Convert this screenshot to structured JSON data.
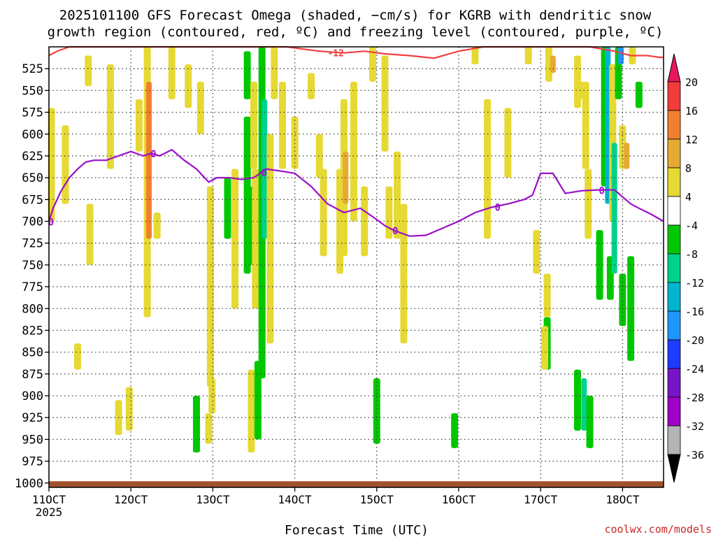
{
  "chart_data": {
    "type": "heatmap",
    "title_line1": "2025101100 GFS Forecast Omega (shaded, −cm/s) for KGRB with dendritic snow",
    "title_line2": "growth region (contoured, red, ºC) and freezing level (contoured, purple, ºC)",
    "xlabel": "Forecast Time (UTC)",
    "ylabel": "",
    "credit": "coolwx.com/models",
    "x_year_label": "2025",
    "x_ticks": [
      "11OCT",
      "12OCT",
      "13OCT",
      "14OCT",
      "15OCT",
      "16OCT",
      "17OCT",
      "18OCT"
    ],
    "x_tick_days": [
      11,
      12,
      13,
      14,
      15,
      16,
      17,
      18
    ],
    "xlim_days": [
      11,
      18.5
    ],
    "y_ticks": [
      525,
      550,
      575,
      600,
      625,
      650,
      675,
      700,
      725,
      750,
      775,
      800,
      825,
      850,
      875,
      900,
      925,
      950,
      975,
      1000
    ],
    "ylim_hpa": [
      500,
      1005
    ],
    "colorbar": {
      "levels": [
        "20",
        "16",
        "12",
        "8",
        "4",
        "-4",
        "-8",
        "-12",
        "-16",
        "-20",
        "-24",
        "-28",
        "-32",
        "-36"
      ],
      "colors": [
        "#e8175d",
        "#f23c3c",
        "#f08030",
        "#e6aa33",
        "#e6d933",
        "#ffffff",
        "#00c800",
        "#00d28c",
        "#00b4d2",
        "#1e96ff",
        "#1e3cff",
        "#7814c8",
        "#a000c8",
        "#b4b4b4",
        "#000000"
      ]
    },
    "shading": [
      {
        "day": 11.03,
        "p_top": 570,
        "p_bot": 700,
        "value": 5
      },
      {
        "day": 11.2,
        "p_top": 590,
        "p_bot": 680,
        "value": 5
      },
      {
        "day": 11.48,
        "p_top": 510,
        "p_bot": 545,
        "value": 5
      },
      {
        "day": 11.35,
        "p_top": 840,
        "p_bot": 870,
        "value": 5
      },
      {
        "day": 11.5,
        "p_top": 680,
        "p_bot": 750,
        "value": 5
      },
      {
        "day": 11.75,
        "p_top": 520,
        "p_bot": 640,
        "value": 5
      },
      {
        "day": 11.85,
        "p_top": 905,
        "p_bot": 945,
        "value": 5
      },
      {
        "day": 11.98,
        "p_top": 890,
        "p_bot": 940,
        "value": 6
      },
      {
        "day": 12.1,
        "p_top": 560,
        "p_bot": 620,
        "value": 5
      },
      {
        "day": 12.2,
        "p_top": 500,
        "p_bot": 810,
        "value": 7
      },
      {
        "day": 12.22,
        "p_top": 540,
        "p_bot": 720,
        "value": 12
      },
      {
        "day": 12.32,
        "p_top": 690,
        "p_bot": 720,
        "value": 5
      },
      {
        "day": 12.5,
        "p_top": 500,
        "p_bot": 560,
        "value": 5
      },
      {
        "day": 12.7,
        "p_top": 520,
        "p_bot": 570,
        "value": 5
      },
      {
        "day": 12.85,
        "p_top": 540,
        "p_bot": 600,
        "value": 5
      },
      {
        "day": 12.97,
        "p_top": 660,
        "p_bot": 890,
        "value": 5
      },
      {
        "day": 12.95,
        "p_top": 920,
        "p_bot": 955,
        "value": 5
      },
      {
        "day": 12.99,
        "p_top": 880,
        "p_bot": 920,
        "value": 6
      },
      {
        "day": 12.8,
        "p_top": 900,
        "p_bot": 965,
        "value": -6
      },
      {
        "day": 13.18,
        "p_top": 650,
        "p_bot": 720,
        "value": -6
      },
      {
        "day": 13.27,
        "p_top": 640,
        "p_bot": 800,
        "value": 5
      },
      {
        "day": 13.42,
        "p_top": 505,
        "p_bot": 560,
        "value": -6
      },
      {
        "day": 13.42,
        "p_top": 580,
        "p_bot": 760,
        "value": -7
      },
      {
        "day": 13.47,
        "p_top": 660,
        "p_bot": 750,
        "value": -8
      },
      {
        "day": 13.47,
        "p_top": 870,
        "p_bot": 965,
        "value": 5
      },
      {
        "day": 13.5,
        "p_top": 540,
        "p_bot": 640,
        "value": 5
      },
      {
        "day": 13.52,
        "p_top": 640,
        "p_bot": 800,
        "value": 6
      },
      {
        "day": 13.6,
        "p_top": 500,
        "p_bot": 880,
        "value": -7
      },
      {
        "day": 13.63,
        "p_top": 560,
        "p_bot": 720,
        "value": -12
      },
      {
        "day": 13.55,
        "p_top": 860,
        "p_bot": 950,
        "value": -6
      },
      {
        "day": 13.7,
        "p_top": 600,
        "p_bot": 840,
        "value": 6
      },
      {
        "day": 13.75,
        "p_top": 500,
        "p_bot": 560,
        "value": 5
      },
      {
        "day": 13.85,
        "p_top": 540,
        "p_bot": 640,
        "value": 5
      },
      {
        "day": 14.0,
        "p_top": 580,
        "p_bot": 640,
        "value": 5
      },
      {
        "day": 14.2,
        "p_top": 530,
        "p_bot": 560,
        "value": 5
      },
      {
        "day": 14.3,
        "p_top": 600,
        "p_bot": 650,
        "value": 5
      },
      {
        "day": 14.35,
        "p_top": 640,
        "p_bot": 740,
        "value": 6
      },
      {
        "day": 14.55,
        "p_top": 640,
        "p_bot": 760,
        "value": 6
      },
      {
        "day": 14.6,
        "p_top": 560,
        "p_bot": 740,
        "value": 7
      },
      {
        "day": 14.62,
        "p_top": 620,
        "p_bot": 680,
        "value": 11
      },
      {
        "day": 14.72,
        "p_top": 540,
        "p_bot": 700,
        "value": 6
      },
      {
        "day": 14.85,
        "p_top": 660,
        "p_bot": 740,
        "value": 5
      },
      {
        "day": 14.95,
        "p_top": 500,
        "p_bot": 540,
        "value": 5
      },
      {
        "day": 15.0,
        "p_top": 880,
        "p_bot": 955,
        "value": -6
      },
      {
        "day": 15.1,
        "p_top": 510,
        "p_bot": 620,
        "value": 5
      },
      {
        "day": 15.15,
        "p_top": 660,
        "p_bot": 720,
        "value": 5
      },
      {
        "day": 15.25,
        "p_top": 620,
        "p_bot": 720,
        "value": 5
      },
      {
        "day": 15.33,
        "p_top": 680,
        "p_bot": 840,
        "value": 5
      },
      {
        "day": 15.95,
        "p_top": 920,
        "p_bot": 960,
        "value": -6
      },
      {
        "day": 16.2,
        "p_top": 500,
        "p_bot": 520,
        "value": 5
      },
      {
        "day": 16.35,
        "p_top": 560,
        "p_bot": 720,
        "value": 5
      },
      {
        "day": 16.6,
        "p_top": 570,
        "p_bot": 650,
        "value": 5
      },
      {
        "day": 16.85,
        "p_top": 500,
        "p_bot": 520,
        "value": 5
      },
      {
        "day": 16.95,
        "p_top": 710,
        "p_bot": 760,
        "value": 5
      },
      {
        "day": 17.08,
        "p_top": 760,
        "p_bot": 810,
        "value": 5
      },
      {
        "day": 17.08,
        "p_top": 810,
        "p_bot": 870,
        "value": -6
      },
      {
        "day": 17.1,
        "p_top": 500,
        "p_bot": 540,
        "value": 5
      },
      {
        "day": 17.15,
        "p_top": 510,
        "p_bot": 530,
        "value": 10
      },
      {
        "day": 17.05,
        "p_top": 820,
        "p_bot": 870,
        "value": 5
      },
      {
        "day": 17.45,
        "p_top": 510,
        "p_bot": 570,
        "value": 5
      },
      {
        "day": 17.5,
        "p_top": 540,
        "p_bot": 560,
        "value": 5
      },
      {
        "day": 17.55,
        "p_top": 540,
        "p_bot": 640,
        "value": 5
      },
      {
        "day": 17.45,
        "p_top": 870,
        "p_bot": 940,
        "value": -7
      },
      {
        "day": 17.53,
        "p_top": 880,
        "p_bot": 940,
        "value": -10
      },
      {
        "day": 17.6,
        "p_top": 900,
        "p_bot": 960,
        "value": -8
      },
      {
        "day": 17.58,
        "p_top": 640,
        "p_bot": 720,
        "value": 5
      },
      {
        "day": 17.72,
        "p_top": 710,
        "p_bot": 790,
        "value": -6
      },
      {
        "day": 17.78,
        "p_top": 500,
        "p_bot": 660,
        "value": -7
      },
      {
        "day": 17.82,
        "p_top": 500,
        "p_bot": 680,
        "value": -13
      },
      {
        "day": 17.85,
        "p_top": 740,
        "p_bot": 790,
        "value": -7
      },
      {
        "day": 17.88,
        "p_top": 520,
        "p_bot": 700,
        "value": 5
      },
      {
        "day": 17.9,
        "p_top": 610,
        "p_bot": 760,
        "value": -10
      },
      {
        "day": 17.95,
        "p_top": 500,
        "p_bot": 560,
        "value": -7
      },
      {
        "day": 17.98,
        "p_top": 500,
        "p_bot": 520,
        "value": -18
      },
      {
        "day": 18.0,
        "p_top": 590,
        "p_bot": 640,
        "value": 6
      },
      {
        "day": 18.05,
        "p_top": 610,
        "p_bot": 640,
        "value": 10
      },
      {
        "day": 18.0,
        "p_top": 760,
        "p_bot": 820,
        "value": -6
      },
      {
        "day": 18.1,
        "p_top": 740,
        "p_bot": 860,
        "value": -7
      },
      {
        "day": 18.2,
        "p_top": 540,
        "p_bot": 570,
        "value": -7
      },
      {
        "day": 18.12,
        "p_top": 500,
        "p_bot": 520,
        "value": 5
      }
    ],
    "series": [
      {
        "name": "freezing level",
        "label": "0",
        "color": "#9b10c8",
        "x_day": [
          11.0,
          11.05,
          11.15,
          11.25,
          11.35,
          11.45,
          11.55,
          11.7,
          11.85,
          12.0,
          12.15,
          12.25,
          12.35,
          12.5,
          12.65,
          12.8,
          12.95,
          13.05,
          13.2,
          13.35,
          13.5,
          13.65,
          13.8,
          14.0,
          14.2,
          14.4,
          14.6,
          14.8,
          15.0,
          15.1,
          15.2,
          15.4,
          15.6,
          15.8,
          16.0,
          16.2,
          16.4,
          16.6,
          16.8,
          16.9,
          17.0,
          17.15,
          17.3,
          17.5,
          17.7,
          17.9,
          18.1,
          18.2,
          18.35,
          18.5
        ],
        "y_hpa": [
          700,
          685,
          665,
          650,
          640,
          632,
          630,
          630,
          625,
          620,
          625,
          622,
          625,
          618,
          630,
          640,
          655,
          650,
          650,
          652,
          650,
          640,
          642,
          645,
          660,
          680,
          690,
          685,
          698,
          705,
          710,
          717,
          716,
          708,
          700,
          690,
          684,
          680,
          675,
          670,
          645,
          645,
          668,
          665,
          664,
          664,
          680,
          685,
          692,
          700
        ]
      },
      {
        "name": "dendritic snow growth region",
        "label": "-12",
        "color": "#f04040",
        "x_day": [
          11.0,
          11.1,
          11.25,
          11.4,
          13.0,
          13.9,
          14.3,
          14.6,
          14.85,
          15.1,
          15.4,
          15.7,
          16.0,
          16.3,
          16.6,
          16.85,
          17.2,
          17.6,
          17.9,
          18.1,
          18.3,
          18.45,
          18.5
        ],
        "y_hpa": [
          510,
          505,
          500,
          497,
          497,
          500,
          505,
          507,
          505,
          508,
          510,
          513,
          505,
          500,
          498,
          497,
          497,
          500,
          505,
          510,
          510,
          512,
          512
        ]
      }
    ]
  }
}
